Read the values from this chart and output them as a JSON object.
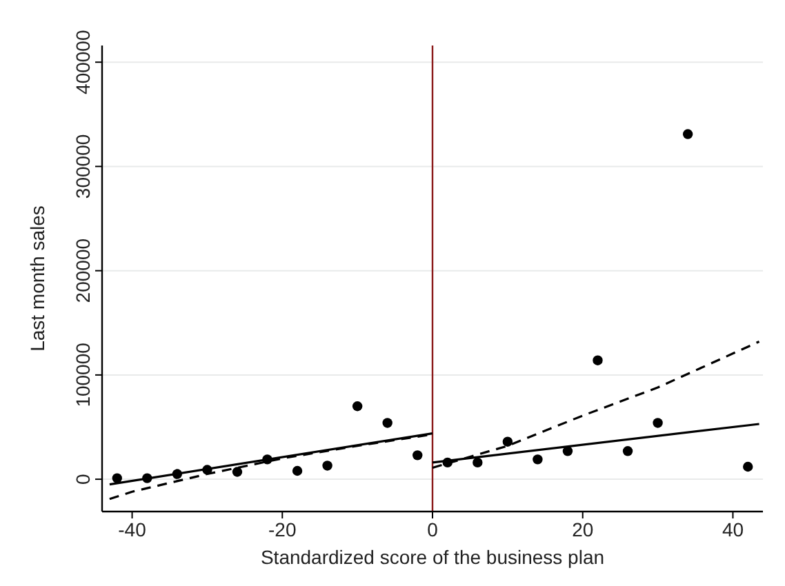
{
  "chart_data": {
    "type": "scatter",
    "xlabel": "Standardized score of the business plan",
    "ylabel": "Last month sales",
    "xlim": [
      -44,
      44
    ],
    "ylim": [
      -31000,
      416000
    ],
    "xticks": [
      -40,
      -20,
      0,
      20,
      40
    ],
    "yticks": [
      0,
      100000,
      200000,
      300000,
      400000
    ],
    "grid": "y",
    "ref_lines": [
      {
        "axis": "x",
        "value": 0,
        "color": "#8b1a1a"
      }
    ],
    "series": [
      {
        "marker": "circle",
        "color": "#000000",
        "x": [
          -42,
          -38,
          -34,
          -30,
          -26,
          -22,
          -18,
          -14,
          -10,
          -6,
          -2,
          2,
          6,
          10,
          14,
          18,
          22,
          26,
          30,
          34,
          42
        ],
        "values": [
          1000,
          1000,
          5000,
          9000,
          7000,
          19000,
          8000,
          13000,
          70000,
          54000,
          23000,
          16000,
          16000,
          36000,
          19000,
          27000,
          114000,
          27000,
          54000,
          331000,
          12000
        ]
      },
      {
        "type": "line",
        "color": "#000000",
        "line_style": "solid",
        "x": [
          -43,
          0
        ],
        "values": [
          -5000,
          44000
        ]
      },
      {
        "type": "line",
        "color": "#000000",
        "line_style": "dashed",
        "x": [
          -43,
          -40,
          -30,
          -20,
          -10,
          0
        ],
        "values": [
          -19000,
          -12000,
          5000,
          20000,
          32000,
          43000
        ]
      },
      {
        "type": "line",
        "color": "#000000",
        "line_style": "solid",
        "x": [
          0,
          43.5
        ],
        "values": [
          16000,
          53000
        ]
      },
      {
        "type": "line",
        "color": "#000000",
        "line_style": "dashed",
        "x": [
          0,
          10,
          20,
          30,
          43.5
        ],
        "values": [
          11000,
          32000,
          61000,
          88000,
          132000
        ]
      }
    ]
  }
}
